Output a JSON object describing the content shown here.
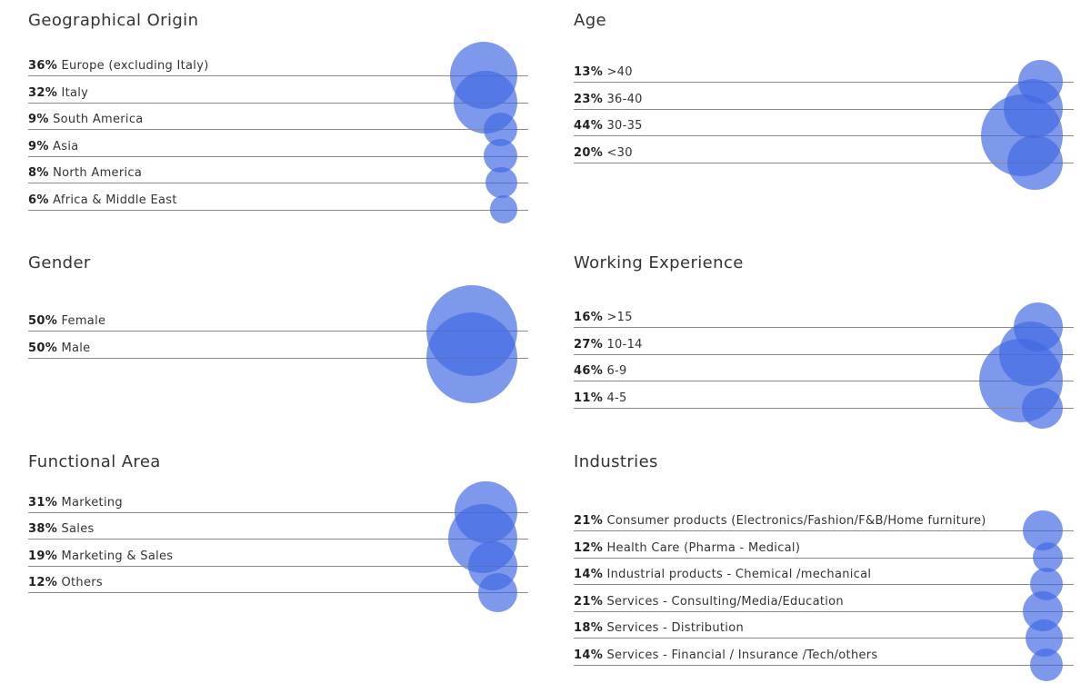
{
  "bubble_color": "#4169E1",
  "chart_data": [
    {
      "type": "bubble",
      "title": "Geographical Origin",
      "items": [
        {
          "pct": "36%",
          "label": "Europe (excluding Italy)",
          "value": 36
        },
        {
          "pct": "32%",
          "label": "Italy",
          "value": 32
        },
        {
          "pct": "9%",
          "label": "South America",
          "value": 9
        },
        {
          "pct": "9%",
          "label": "Asia",
          "value": 9
        },
        {
          "pct": "8%",
          "label": "North America",
          "value": 8
        },
        {
          "pct": "6%",
          "label": "Africa & Middle East",
          "value": 6
        }
      ]
    },
    {
      "type": "bubble",
      "title": "Age",
      "items": [
        {
          "pct": "13%",
          "label": ">40",
          "value": 13
        },
        {
          "pct": "23%",
          "label": "36-40",
          "value": 23
        },
        {
          "pct": "44%",
          "label": "30-35",
          "value": 44
        },
        {
          "pct": "20%",
          "label": "<30",
          "value": 20
        }
      ]
    },
    {
      "type": "bubble",
      "title": "Gender",
      "items": [
        {
          "pct": "50%",
          "label": "Female",
          "value": 50
        },
        {
          "pct": "50%",
          "label": "Male",
          "value": 50
        }
      ]
    },
    {
      "type": "bubble",
      "title": "Working Experience",
      "items": [
        {
          "pct": "16%",
          "label": ">15",
          "value": 16
        },
        {
          "pct": "27%",
          "label": "10-14",
          "value": 27
        },
        {
          "pct": "46%",
          "label": "6-9",
          "value": 46
        },
        {
          "pct": "11%",
          "label": "4-5",
          "value": 11
        }
      ]
    },
    {
      "type": "bubble",
      "title": "Functional Area",
      "items": [
        {
          "pct": "31%",
          "label": "Marketing",
          "value": 31
        },
        {
          "pct": "38%",
          "label": "Sales",
          "value": 38
        },
        {
          "pct": "19%",
          "label": "Marketing & Sales",
          "value": 19
        },
        {
          "pct": "12%",
          "label": "Others",
          "value": 12
        }
      ]
    },
    {
      "type": "bubble",
      "title": "Industries",
      "items": [
        {
          "pct": "21%",
          "label": "Consumer products (Electronics/Fashion/F&B/Home furniture)",
          "value": 21
        },
        {
          "pct": "12%",
          "label": "Health Care (Pharma - Medical)",
          "value": 12
        },
        {
          "pct": "14%",
          "label": "Industrial products - Chemical /mechanical",
          "value": 14
        },
        {
          "pct": "21%",
          "label": "Services - Consulting/Media/Education",
          "value": 21
        },
        {
          "pct": "18%",
          "label": "Services - Distribution",
          "value": 18
        },
        {
          "pct": "14%",
          "label": "Services - Financial / Insurance /Tech/others",
          "value": 14
        }
      ]
    }
  ]
}
